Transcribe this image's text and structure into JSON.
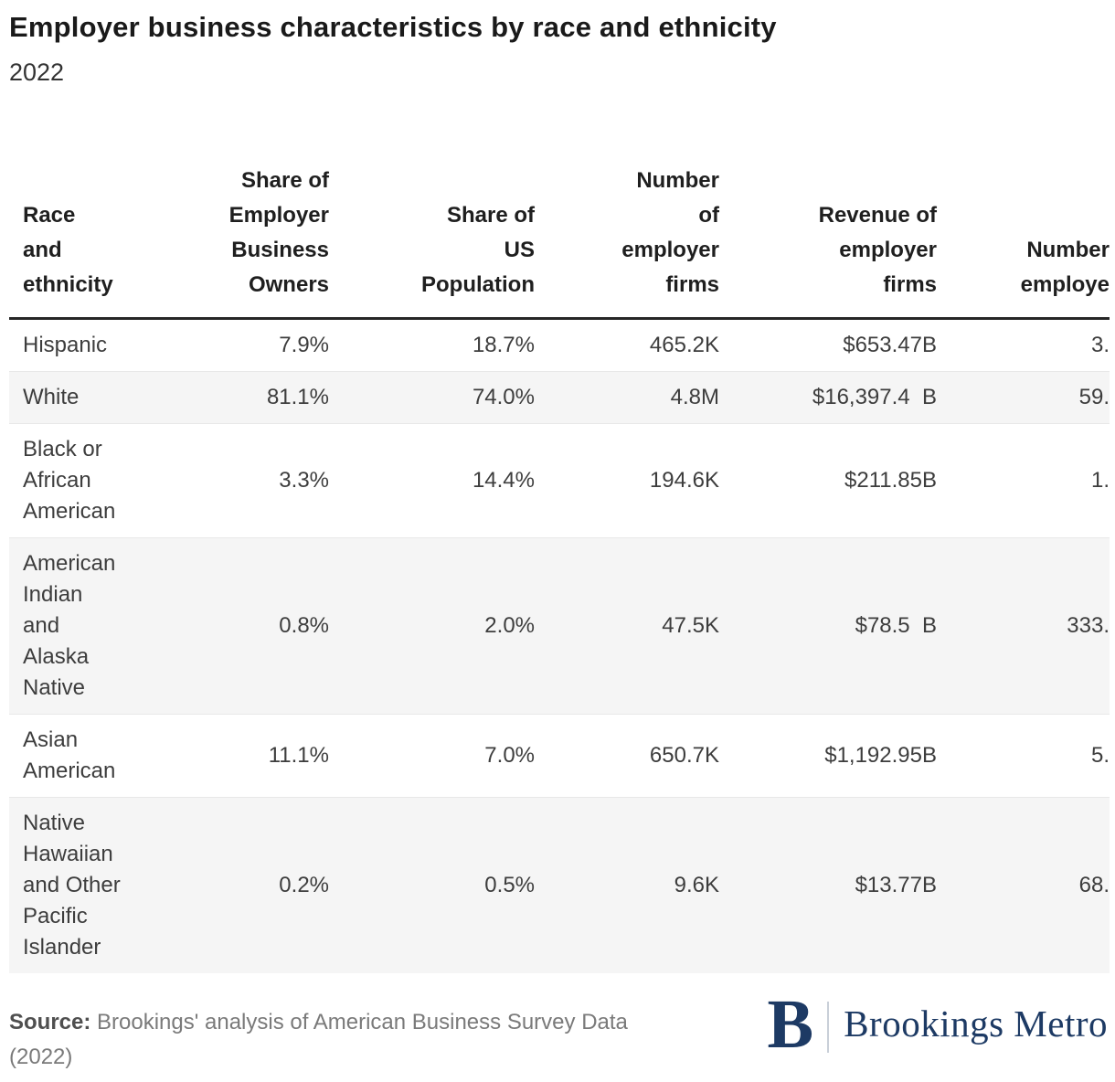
{
  "title": "Employer business characteristics by race and ethnicity",
  "subtitle": "2022",
  "table": {
    "columns": [
      {
        "label_lines": [
          "Race",
          "and",
          "ethnicity"
        ],
        "align": "left"
      },
      {
        "label_lines": [
          "Share of",
          "Employer",
          "Business",
          "Owners"
        ],
        "align": "right"
      },
      {
        "label_lines": [
          "Share of",
          "US",
          "Population"
        ],
        "align": "right"
      },
      {
        "label_lines": [
          "Number",
          "of",
          "employer",
          "firms"
        ],
        "align": "right"
      },
      {
        "label_lines": [
          "Revenue of",
          "employer",
          "firms"
        ],
        "align": "right"
      },
      {
        "label_lines": [
          "Number",
          "employe"
        ],
        "align": "right",
        "clipped_at_right_edge": true
      }
    ],
    "rows": [
      {
        "race_lines": [
          "Hispanic"
        ],
        "share_owners": "7.9%",
        "share_pop": "18.7%",
        "firms": "465.2K",
        "revenue": "$653.47B",
        "employed_visible": "3."
      },
      {
        "race_lines": [
          "White"
        ],
        "share_owners": "81.1%",
        "share_pop": "74.0%",
        "firms": "4.8M",
        "revenue": "$16,397.4  B",
        "employed_visible": "59."
      },
      {
        "race_lines": [
          "Black or",
          "African",
          "American"
        ],
        "share_owners": "3.3%",
        "share_pop": "14.4%",
        "firms": "194.6K",
        "revenue": "$211.85B",
        "employed_visible": "1."
      },
      {
        "race_lines": [
          "American",
          "Indian",
          "and",
          "Alaska",
          "Native"
        ],
        "share_owners": "0.8%",
        "share_pop": "2.0%",
        "firms": "47.5K",
        "revenue": "$78.5  B",
        "employed_visible": "333."
      },
      {
        "race_lines": [
          "Asian",
          "American"
        ],
        "share_owners": "11.1%",
        "share_pop": "7.0%",
        "firms": "650.7K",
        "revenue": "$1,192.95B",
        "employed_visible": "5."
      },
      {
        "race_lines": [
          "Native",
          "Hawaiian",
          "and Other",
          "Pacific",
          "Islander"
        ],
        "share_owners": "0.2%",
        "share_pop": "0.5%",
        "firms": "9.6K",
        "revenue": "$13.77B",
        "employed_visible": "68."
      }
    ]
  },
  "footer": {
    "source_label": "Source:",
    "source_text_line1": "Brookings' analysis of American Business Survey Data",
    "source_text_line2": "(2022)",
    "logo_letter": "B",
    "logo_text": "Brookings Metro"
  },
  "colors": {
    "title_text": "#1a1a1a",
    "body_text": "#3d3d3d",
    "header_rule": "#262626",
    "zebra_row": "#f5f5f5",
    "row_border": "#e8e8e8",
    "source_text": "#7a7a7a",
    "brookings_navy": "#1d3a64",
    "logo_divider": "#c9cfd8"
  },
  "chart_data": {
    "type": "table",
    "title": "Employer business characteristics by race and ethnicity",
    "subtitle": "2022",
    "columns": [
      "Race and ethnicity",
      "Share of Employer Business Owners",
      "Share of US Population",
      "Number of employer firms",
      "Revenue of employer firms",
      "Number employe (column clipped at right image edge)"
    ],
    "rows": [
      [
        "Hispanic",
        "7.9%",
        "18.7%",
        "465.2K",
        "$653.47B",
        "3. (clipped)"
      ],
      [
        "White",
        "81.1%",
        "74.0%",
        "4.8M",
        "$16,397.4 B",
        "59. (clipped)"
      ],
      [
        "Black or African American",
        "3.3%",
        "14.4%",
        "194.6K",
        "$211.85B",
        "1. (clipped)"
      ],
      [
        "American Indian and Alaska Native",
        "0.8%",
        "2.0%",
        "47.5K",
        "$78.5 B",
        "333. (clipped)"
      ],
      [
        "Asian American",
        "11.1%",
        "7.0%",
        "650.7K",
        "$1,192.95B",
        "5. (clipped)"
      ],
      [
        "Native Hawaiian and Other Pacific Islander",
        "0.2%",
        "0.5%",
        "9.6K",
        "$13.77B",
        "68. (clipped)"
      ]
    ],
    "layout": {
      "zebra_striping": "even rows shaded",
      "header_rule": "thick dark line under header",
      "value_alignment": "right, first column left"
    },
    "source": "Source: Brookings' analysis of American Business Survey Data (2022)",
    "branding": "B | Brookings Metro"
  }
}
